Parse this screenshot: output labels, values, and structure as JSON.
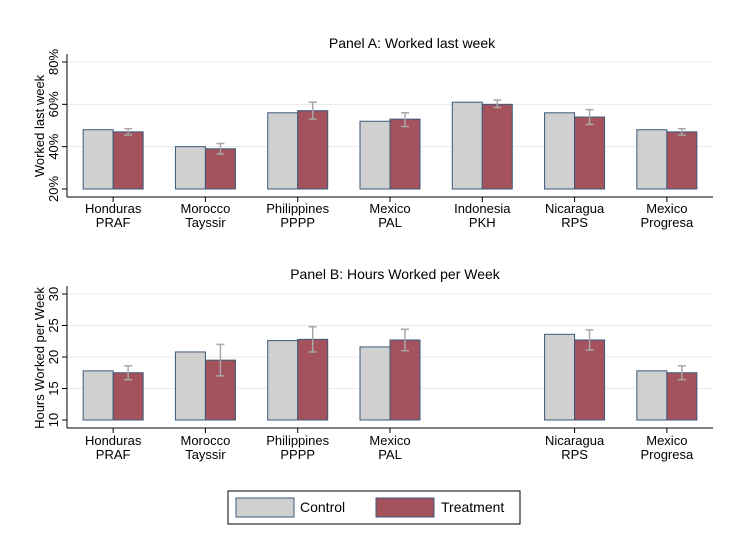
{
  "chart_data": [
    {
      "type": "bar",
      "title": "Panel A: Worked last week",
      "ylabel": "Worked last week",
      "xlabel": "",
      "ylim": [
        20,
        80
      ],
      "yticks": [
        "20%",
        "40%",
        "60%",
        "80%"
      ],
      "grid": true,
      "categories": [
        {
          "line1": "Honduras",
          "line2": "PRAF"
        },
        {
          "line1": "Morocco",
          "line2": "Tayssir"
        },
        {
          "line1": "Philippines",
          "line2": "PPPP"
        },
        {
          "line1": "Mexico",
          "line2": "PAL"
        },
        {
          "line1": "Indonesia",
          "line2": "PKH"
        },
        {
          "line1": "Nicaragua",
          "line2": "RPS"
        },
        {
          "line1": "Mexico",
          "line2": "Progresa"
        }
      ],
      "series": [
        {
          "name": "Control",
          "values": [
            48,
            40,
            56,
            52,
            61,
            56,
            48
          ]
        },
        {
          "name": "Treatment",
          "values": [
            47,
            39,
            57,
            53,
            60,
            54,
            47
          ],
          "ci_low": [
            45.5,
            36.5,
            53,
            49.5,
            58.5,
            50.5,
            45.5
          ],
          "ci_high": [
            48.5,
            41.5,
            61,
            56,
            62,
            57.5,
            48.5
          ]
        }
      ]
    },
    {
      "type": "bar",
      "title": "Panel B: Hours Worked per Week",
      "ylabel": "Hours Worked per Week",
      "xlabel": "",
      "ylim": [
        10,
        30
      ],
      "yticks": [
        "10",
        "15",
        "20",
        "25",
        "30"
      ],
      "grid": true,
      "categories": [
        {
          "line1": "Honduras",
          "line2": "PRAF"
        },
        {
          "line1": "Morocco",
          "line2": "Tayssir"
        },
        {
          "line1": "Philippines",
          "line2": "PPPP"
        },
        {
          "line1": "Mexico",
          "line2": "PAL"
        },
        {
          "line1": "",
          "line2": ""
        },
        {
          "line1": "Nicaragua",
          "line2": "RPS"
        },
        {
          "line1": "Mexico",
          "line2": "Progresa"
        }
      ],
      "series": [
        {
          "name": "Control",
          "values": [
            17.8,
            20.8,
            22.6,
            21.6,
            null,
            23.6,
            17.8
          ]
        },
        {
          "name": "Treatment",
          "values": [
            17.5,
            19.5,
            22.8,
            22.7,
            null,
            22.7,
            17.5
          ],
          "ci_low": [
            16.4,
            17,
            20.8,
            21,
            null,
            21.1,
            16.4
          ],
          "ci_high": [
            18.6,
            22,
            24.8,
            24.4,
            null,
            24.3,
            18.6
          ]
        }
      ]
    }
  ],
  "legend": {
    "position": "bottom",
    "items": [
      {
        "label": "Control",
        "color": "#d0d0d0",
        "border": "#3b5a7a"
      },
      {
        "label": "Treatment",
        "color": "#a4525c",
        "border": "#3b5a7a"
      }
    ]
  },
  "colors": {
    "control": "#d0d0d0",
    "treatment": "#a4525c",
    "bar_border": "#3b5a7a",
    "error_bar": "#a8a8a8",
    "gridline": "#eaeaea",
    "axis": "#000000"
  }
}
